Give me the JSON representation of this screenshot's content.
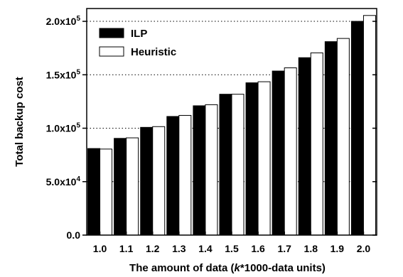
{
  "chart_data": {
    "type": "bar",
    "categories": [
      "1.0",
      "1.1",
      "1.2",
      "1.3",
      "1.4",
      "1.5",
      "1.6",
      "1.7",
      "1.8",
      "1.9",
      "2.0"
    ],
    "series": [
      {
        "name": "ILP",
        "color": "#000000",
        "values": [
          81000,
          90500,
          100800,
          111000,
          121000,
          131800,
          142500,
          153500,
          166000,
          181000,
          200000
        ]
      },
      {
        "name": "Heuristic",
        "color": "#ffffff",
        "values": [
          80500,
          91000,
          101500,
          112000,
          122000,
          131800,
          143500,
          156500,
          170500,
          184000,
          205500
        ]
      }
    ],
    "xlabel_prefix": "The amount of data (",
    "xlabel_italic": "k",
    "xlabel_suffix": "*1000-data units)",
    "ylabel": "Total backup cost",
    "ylim": [
      0,
      212000
    ],
    "yticks": [
      {
        "value": 0,
        "label": "0.0"
      },
      {
        "value": 50000,
        "mantissa": "5.0x10",
        "exp": "4"
      },
      {
        "value": 100000,
        "mantissa": "1.0x10",
        "exp": "5"
      },
      {
        "value": 150000,
        "mantissa": "1.5x10",
        "exp": "5"
      },
      {
        "value": 200000,
        "mantissa": "2.0x10",
        "exp": "5"
      }
    ],
    "grid": "dotted horizontal at major ticks",
    "legend_position": "top-left"
  }
}
